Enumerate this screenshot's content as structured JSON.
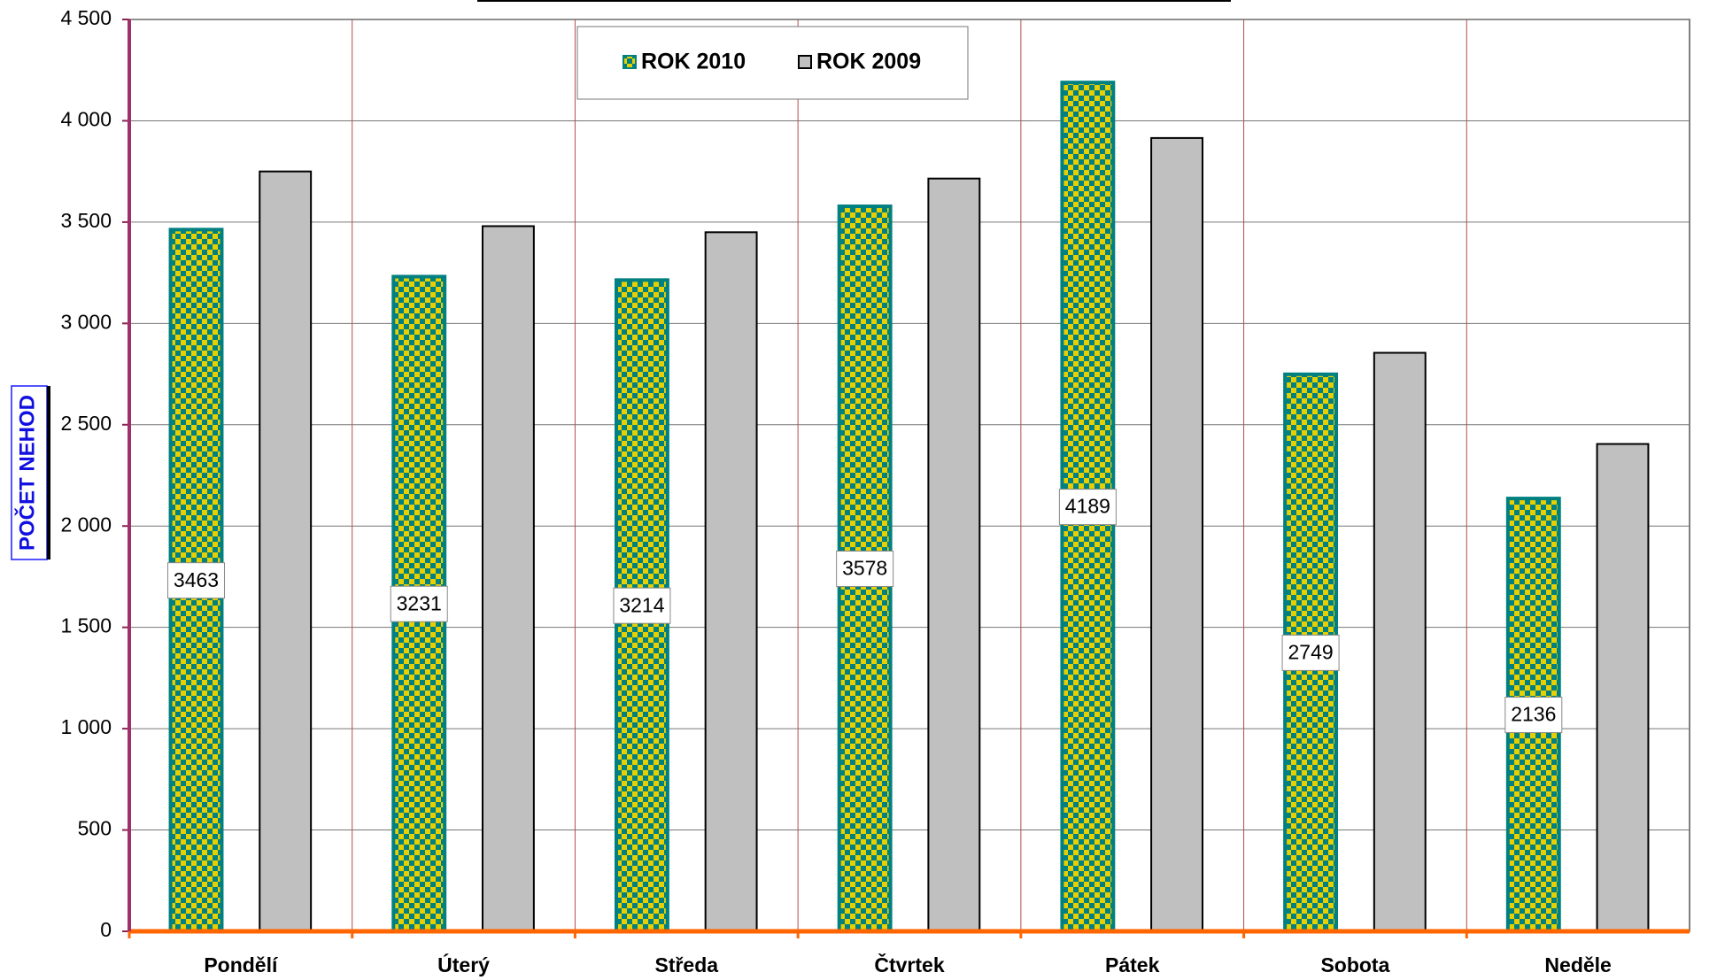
{
  "chart_data": {
    "type": "bar",
    "y_label": "POČET NEHOD",
    "categories": [
      "Pondělí",
      "Úterý",
      "Středa",
      "Čtvrtek",
      "Pátek",
      "Sobota",
      "Neděle"
    ],
    "series": [
      {
        "name": "ROK 2010",
        "color": "#008080",
        "values": [
          3463,
          3231,
          3214,
          3578,
          4189,
          2749,
          2136
        ]
      },
      {
        "name": "ROK 2009",
        "color": "#c0c0c0",
        "values": [
          3750,
          3480,
          3450,
          3715,
          3915,
          2855,
          2405
        ]
      }
    ],
    "ylim": [
      0,
      4500
    ],
    "yticks": [
      0,
      500,
      {
        "value": 1000,
        "label": "1 000"
      },
      {
        "value": 1500,
        "label": "1 500"
      },
      {
        "value": 2000,
        "label": "2 000"
      },
      {
        "value": 2500,
        "label": "2 500"
      },
      {
        "value": 3000,
        "label": "3 000"
      },
      {
        "value": 3500,
        "label": "3 500"
      },
      {
        "value": 4000,
        "label": "4 000"
      },
      {
        "value": 4500,
        "label": "4 500"
      }
    ],
    "grid": true
  }
}
